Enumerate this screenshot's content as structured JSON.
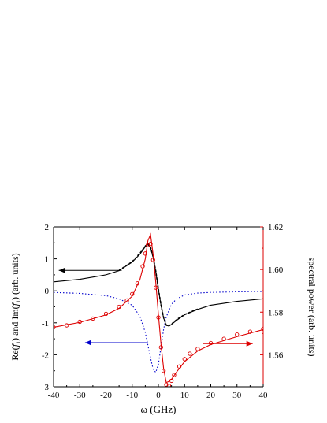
{
  "chart_data": {
    "type": "line",
    "xlabel": "ω (GHz)",
    "ylabel_left": {
      "main": "Re(",
      "f1": "f",
      "sub1": "1",
      "mid": ") and Im(",
      "f2": "f",
      "sub2": "1",
      "end": ") (arb. units)"
    },
    "ylabel_right": "spectral power (arb. units)",
    "xlim": [
      -40,
      40
    ],
    "ylim_left": [
      -3,
      2
    ],
    "ylim_right": [
      1.545,
      1.62
    ],
    "x_ticks": [
      -40,
      -30,
      -20,
      -10,
      0,
      10,
      20,
      30,
      40
    ],
    "y_ticks_left": [
      -3,
      -2,
      -1,
      0,
      1,
      2
    ],
    "y_ticks_left_labels": [
      "-3",
      "-2",
      "-1",
      "0",
      "1",
      "2"
    ],
    "y_ticks_right": [
      1.56,
      1.58,
      1.6,
      1.62
    ],
    "y_ticks_right_labels": [
      "1.56",
      "1.58",
      "1.60",
      "1.62"
    ],
    "grid": false,
    "colors": {
      "re": "#000000",
      "im": "#0000cc",
      "power": "#dd0000",
      "axis_right": "#dd0000"
    },
    "series": [
      {
        "axis": "left",
        "style": "solid",
        "color": "#000000",
        "x": [
          -40,
          -30,
          -20,
          -15,
          -10,
          -7,
          -5,
          -4,
          -3,
          -2,
          -1,
          0,
          1,
          2,
          3,
          4,
          5,
          7,
          10,
          15,
          20,
          30,
          40
        ],
        "y": [
          0.28,
          0.36,
          0.5,
          0.63,
          0.9,
          1.15,
          1.38,
          1.45,
          1.35,
          1.05,
          0.6,
          0.05,
          -0.45,
          -0.85,
          -1.08,
          -1.1,
          -1.05,
          -0.92,
          -0.75,
          -0.58,
          -0.45,
          -0.33,
          -0.25
        ]
      },
      {
        "axis": "left",
        "style": "dashed",
        "color": "#000000",
        "x": [
          -15,
          -10,
          -7,
          -5,
          -4,
          -3,
          -2,
          -1,
          0,
          1,
          2,
          3,
          4,
          5,
          7,
          10,
          15
        ],
        "y": [
          0.64,
          0.91,
          1.18,
          1.4,
          1.47,
          1.37,
          1.06,
          0.62,
          0.06,
          -0.44,
          -0.84,
          -1.07,
          -1.1,
          -1.04,
          -0.9,
          -0.74,
          -0.57
        ]
      },
      {
        "axis": "left",
        "style": "dotted",
        "color": "#0000cc",
        "x": [
          -40,
          -30,
          -20,
          -15,
          -10,
          -7,
          -5,
          -3,
          -2,
          -1,
          0,
          1,
          2,
          3,
          5,
          7,
          10,
          15,
          20,
          30,
          40
        ],
        "y": [
          -0.05,
          -0.08,
          -0.15,
          -0.25,
          -0.45,
          -0.8,
          -1.3,
          -2.1,
          -2.45,
          -2.55,
          -2.3,
          -1.75,
          -1.2,
          -0.82,
          -0.42,
          -0.25,
          -0.13,
          -0.07,
          -0.05,
          -0.03,
          -0.02
        ]
      },
      {
        "axis": "right",
        "style": "solid",
        "color": "#dd0000",
        "x": [
          -40,
          -30,
          -20,
          -15,
          -10,
          -7,
          -5,
          -4,
          -3,
          -2,
          -1,
          0,
          1,
          2,
          3,
          4,
          5,
          7,
          10,
          15,
          20,
          30,
          40
        ],
        "y": [
          1.5729,
          1.5752,
          1.5787,
          1.5818,
          1.5875,
          1.5955,
          1.605,
          1.6135,
          1.6165,
          1.607,
          1.594,
          1.579,
          1.565,
          1.5535,
          1.547,
          1.5475,
          1.5485,
          1.552,
          1.5568,
          1.5618,
          1.5648,
          1.5685,
          1.5718
        ]
      },
      {
        "axis": "right",
        "style": "markers",
        "color": "#dd0000",
        "x": [
          -40,
          -35,
          -30,
          -25,
          -20,
          -15,
          -12,
          -10,
          -8,
          -6,
          -5,
          -4,
          -3,
          -2,
          -1,
          0,
          1,
          2,
          3,
          4,
          5,
          6,
          8,
          10,
          12,
          15,
          20,
          25,
          30,
          35,
          40
        ],
        "y": [
          1.5729,
          1.5738,
          1.5755,
          1.577,
          1.5792,
          1.5825,
          1.5855,
          1.5885,
          1.5935,
          1.6015,
          1.6075,
          1.6115,
          1.612,
          1.6045,
          1.5915,
          1.5775,
          1.5635,
          1.5525,
          1.546,
          1.5455,
          1.5478,
          1.5505,
          1.5545,
          1.558,
          1.5605,
          1.5628,
          1.5655,
          1.5675,
          1.5695,
          1.5708,
          1.5722
        ]
      }
    ],
    "arrows": [
      {
        "axis": "left",
        "from": [
          -14,
          0.64
        ],
        "to": [
          -38,
          0.64
        ],
        "color": "#000000"
      },
      {
        "axis": "left",
        "from": [
          -4,
          -1.62
        ],
        "to": [
          -28,
          -1.62
        ],
        "color": "#0000cc"
      },
      {
        "axis": "left",
        "from": [
          17,
          -1.65
        ],
        "to": [
          36,
          -1.65
        ],
        "color": "#dd0000"
      }
    ]
  }
}
